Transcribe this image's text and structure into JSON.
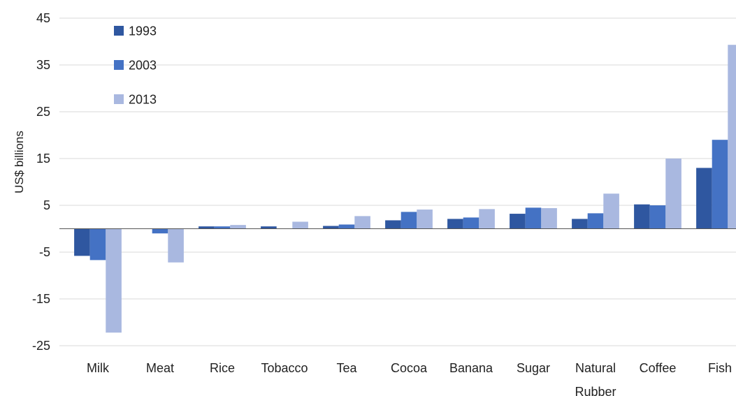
{
  "chart_data": {
    "type": "bar",
    "title": "",
    "xlabel": "",
    "ylabel": "US$ billions",
    "ylim": [
      -25,
      45
    ],
    "yticks": [
      45,
      35,
      25,
      15,
      5,
      -5,
      -15,
      -25
    ],
    "grid": true,
    "legend_position": "top-left",
    "categories": [
      [
        "Milk"
      ],
      [
        "Meat"
      ],
      [
        "Rice"
      ],
      [
        "Tobacco"
      ],
      [
        "Tea"
      ],
      [
        "Cocoa"
      ],
      [
        "Banana"
      ],
      [
        "Sugar"
      ],
      [
        "Natural",
        "Rubber"
      ],
      [
        "Coffee"
      ],
      [
        "Fish"
      ]
    ],
    "series": [
      {
        "name": "1993",
        "color": "#2f57a0",
        "values": [
          -5.8,
          0,
          0.5,
          0.5,
          0.6,
          1.8,
          2.1,
          3.2,
          2.1,
          5.2,
          13
        ]
      },
      {
        "name": "2003",
        "color": "#4472c4",
        "values": [
          -6.7,
          -1.0,
          0.5,
          0,
          0.9,
          3.6,
          2.4,
          4.5,
          3.3,
          5.0,
          19
        ]
      },
      {
        "name": "2013",
        "color": "#a9b8e0",
        "values": [
          -22.2,
          -7.2,
          0.8,
          1.5,
          2.7,
          4.1,
          4.2,
          4.4,
          7.5,
          15,
          39.3
        ]
      }
    ]
  }
}
